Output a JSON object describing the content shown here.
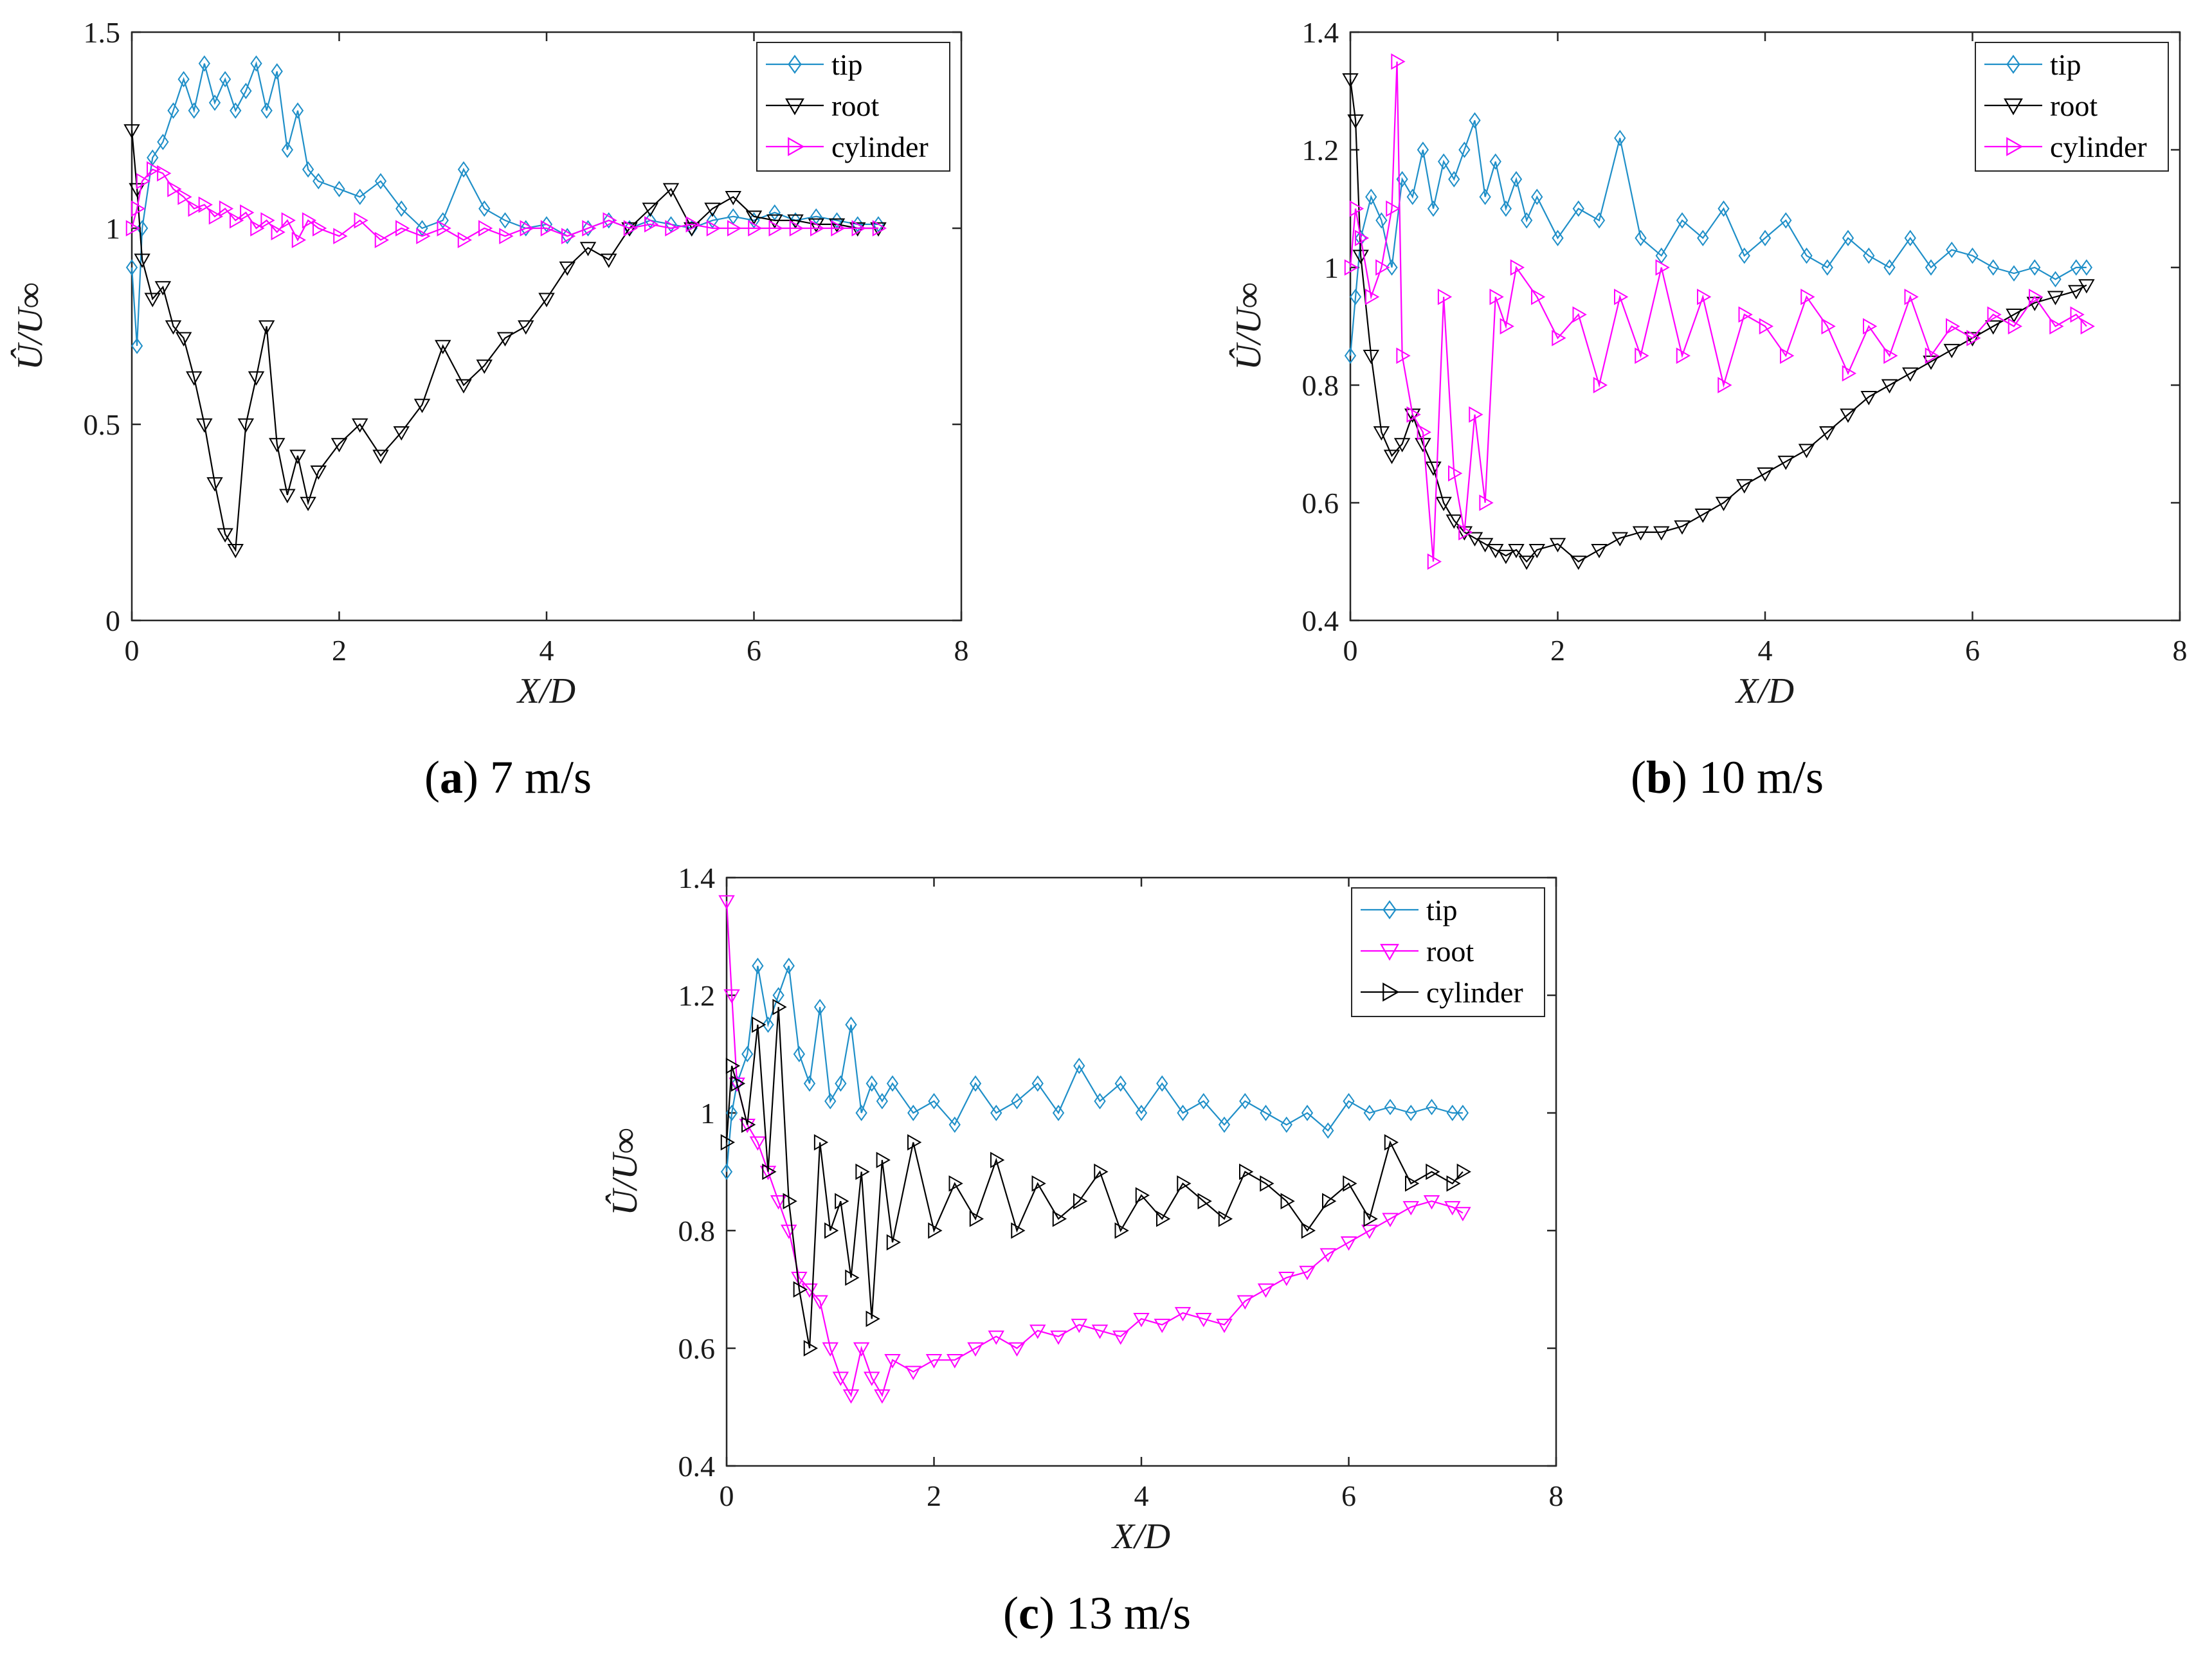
{
  "figure": {
    "captions": [
      {
        "letter": "a",
        "text": "7 m/s"
      },
      {
        "letter": "b",
        "text": "10 m/s"
      },
      {
        "letter": "c",
        "text": "13 m/s"
      }
    ]
  },
  "chart_data": [
    {
      "id": "a",
      "type": "line",
      "title": "",
      "xlabel": "X/D",
      "ylabel": "Û/U∞",
      "xlim": [
        0,
        8
      ],
      "ylim": [
        0,
        1.5
      ],
      "xticks": [
        0,
        2,
        4,
        6,
        8
      ],
      "yticks": [
        0,
        0.5,
        1,
        1.5
      ],
      "ytick_labels": [
        "0",
        "0.5",
        "1",
        "1.5"
      ],
      "legend": "top-right",
      "series": [
        {
          "name": "tip",
          "color": "#1f8fc8",
          "marker": "diamond",
          "x": [
            0,
            0.05,
            0.1,
            0.2,
            0.3,
            0.4,
            0.5,
            0.6,
            0.7,
            0.8,
            0.9,
            1.0,
            1.1,
            1.2,
            1.3,
            1.4,
            1.5,
            1.6,
            1.7,
            1.8,
            2.0,
            2.2,
            2.4,
            2.6,
            2.8,
            3.0,
            3.2,
            3.4,
            3.6,
            3.8,
            4.0,
            4.2,
            4.4,
            4.6,
            4.8,
            5.0,
            5.2,
            5.4,
            5.6,
            5.8,
            6.0,
            6.2,
            6.4,
            6.6,
            6.8,
            7.0,
            7.2
          ],
          "y": [
            0.9,
            0.7,
            1.0,
            1.18,
            1.22,
            1.3,
            1.38,
            1.3,
            1.42,
            1.32,
            1.38,
            1.3,
            1.35,
            1.42,
            1.3,
            1.4,
            1.2,
            1.3,
            1.15,
            1.12,
            1.1,
            1.08,
            1.12,
            1.05,
            1.0,
            1.02,
            1.15,
            1.05,
            1.02,
            1.0,
            1.01,
            0.98,
            1.0,
            1.02,
            1.0,
            1.02,
            1.01,
            1.0,
            1.02,
            1.03,
            1.02,
            1.04,
            1.02,
            1.03,
            1.02,
            1.01,
            1.01
          ]
        },
        {
          "name": "root",
          "color": "#000000",
          "marker": "triangle-down",
          "x": [
            0,
            0.05,
            0.1,
            0.2,
            0.3,
            0.4,
            0.5,
            0.6,
            0.7,
            0.8,
            0.9,
            1.0,
            1.1,
            1.2,
            1.3,
            1.4,
            1.5,
            1.6,
            1.7,
            1.8,
            2.0,
            2.2,
            2.4,
            2.6,
            2.8,
            3.0,
            3.2,
            3.4,
            3.6,
            3.8,
            4.0,
            4.2,
            4.4,
            4.6,
            4.8,
            5.0,
            5.2,
            5.4,
            5.6,
            5.8,
            6.0,
            6.2,
            6.4,
            6.6,
            6.8,
            7.0,
            7.2
          ],
          "y": [
            1.25,
            1.1,
            0.92,
            0.82,
            0.85,
            0.75,
            0.72,
            0.62,
            0.5,
            0.35,
            0.22,
            0.18,
            0.5,
            0.62,
            0.75,
            0.45,
            0.32,
            0.42,
            0.3,
            0.38,
            0.45,
            0.5,
            0.42,
            0.48,
            0.55,
            0.7,
            0.6,
            0.65,
            0.72,
            0.75,
            0.82,
            0.9,
            0.95,
            0.92,
            1.0,
            1.05,
            1.1,
            1.0,
            1.05,
            1.08,
            1.03,
            1.02,
            1.02,
            1.01,
            1.01,
            1.0,
            1.0
          ]
        },
        {
          "name": "cylinder",
          "color": "#ff00ff",
          "marker": "triangle-right",
          "x": [
            0,
            0.05,
            0.1,
            0.2,
            0.3,
            0.4,
            0.5,
            0.6,
            0.7,
            0.8,
            0.9,
            1.0,
            1.1,
            1.2,
            1.3,
            1.4,
            1.5,
            1.6,
            1.7,
            1.8,
            2.0,
            2.2,
            2.4,
            2.6,
            2.8,
            3.0,
            3.2,
            3.4,
            3.6,
            3.8,
            4.0,
            4.2,
            4.4,
            4.6,
            4.8,
            5.0,
            5.2,
            5.4,
            5.6,
            5.8,
            6.0,
            6.2,
            6.4,
            6.6,
            6.8,
            7.0,
            7.2
          ],
          "y": [
            1.0,
            1.05,
            1.12,
            1.15,
            1.14,
            1.1,
            1.08,
            1.05,
            1.06,
            1.03,
            1.05,
            1.02,
            1.04,
            1.0,
            1.02,
            0.99,
            1.02,
            0.97,
            1.02,
            1.0,
            0.98,
            1.02,
            0.97,
            1.0,
            0.98,
            1.0,
            0.97,
            1.0,
            0.98,
            1.0,
            1.0,
            0.98,
            1.0,
            1.02,
            1.0,
            1.01,
            1.0,
            1.01,
            1.0,
            1.0,
            1.0,
            1.0,
            1.0,
            1.0,
            1.0,
            1.0,
            1.0
          ]
        }
      ]
    },
    {
      "id": "b",
      "type": "line",
      "title": "",
      "xlabel": "X/D",
      "ylabel": "Û/U∞",
      "xlim": [
        0,
        8
      ],
      "ylim": [
        0.4,
        1.4
      ],
      "xticks": [
        0,
        2,
        4,
        6,
        8
      ],
      "yticks": [
        0.4,
        0.6,
        0.8,
        1,
        1.2,
        1.4
      ],
      "ytick_labels": [
        "0.4",
        "0.6",
        "0.8",
        "1",
        "1.2",
        "1.4"
      ],
      "legend": "top-right",
      "series": [
        {
          "name": "tip",
          "color": "#1f8fc8",
          "marker": "diamond",
          "x": [
            0,
            0.05,
            0.1,
            0.2,
            0.3,
            0.4,
            0.5,
            0.6,
            0.7,
            0.8,
            0.9,
            1.0,
            1.1,
            1.2,
            1.3,
            1.4,
            1.5,
            1.6,
            1.7,
            1.8,
            2.0,
            2.2,
            2.4,
            2.6,
            2.8,
            3.0,
            3.2,
            3.4,
            3.6,
            3.8,
            4.0,
            4.2,
            4.4,
            4.6,
            4.8,
            5.0,
            5.2,
            5.4,
            5.6,
            5.8,
            6.0,
            6.2,
            6.4,
            6.6,
            6.8,
            7.0,
            7.1
          ],
          "y": [
            0.85,
            0.95,
            1.05,
            1.12,
            1.08,
            1.0,
            1.15,
            1.12,
            1.2,
            1.1,
            1.18,
            1.15,
            1.2,
            1.25,
            1.12,
            1.18,
            1.1,
            1.15,
            1.08,
            1.12,
            1.05,
            1.1,
            1.08,
            1.22,
            1.05,
            1.02,
            1.08,
            1.05,
            1.1,
            1.02,
            1.05,
            1.08,
            1.02,
            1.0,
            1.05,
            1.02,
            1.0,
            1.05,
            1.0,
            1.03,
            1.02,
            1.0,
            0.99,
            1.0,
            0.98,
            1.0,
            1.0
          ]
        },
        {
          "name": "root",
          "color": "#000000",
          "marker": "triangle-down",
          "x": [
            0,
            0.05,
            0.1,
            0.2,
            0.3,
            0.4,
            0.5,
            0.6,
            0.7,
            0.8,
            0.9,
            1.0,
            1.1,
            1.2,
            1.3,
            1.4,
            1.5,
            1.6,
            1.7,
            1.8,
            2.0,
            2.2,
            2.4,
            2.6,
            2.8,
            3.0,
            3.2,
            3.4,
            3.6,
            3.8,
            4.0,
            4.2,
            4.4,
            4.6,
            4.8,
            5.0,
            5.2,
            5.4,
            5.6,
            5.8,
            6.0,
            6.2,
            6.4,
            6.6,
            6.8,
            7.0,
            7.1
          ],
          "y": [
            1.32,
            1.25,
            1.02,
            0.85,
            0.72,
            0.68,
            0.7,
            0.75,
            0.7,
            0.66,
            0.6,
            0.57,
            0.55,
            0.54,
            0.53,
            0.52,
            0.51,
            0.52,
            0.5,
            0.52,
            0.53,
            0.5,
            0.52,
            0.54,
            0.55,
            0.55,
            0.56,
            0.58,
            0.6,
            0.63,
            0.65,
            0.67,
            0.69,
            0.72,
            0.75,
            0.78,
            0.8,
            0.82,
            0.84,
            0.86,
            0.88,
            0.9,
            0.92,
            0.94,
            0.95,
            0.96,
            0.97
          ]
        },
        {
          "name": "cylinder",
          "color": "#ff00ff",
          "marker": "triangle-right",
          "x": [
            0,
            0.05,
            0.1,
            0.2,
            0.3,
            0.4,
            0.45,
            0.5,
            0.6,
            0.7,
            0.8,
            0.9,
            1.0,
            1.1,
            1.2,
            1.3,
            1.4,
            1.5,
            1.6,
            1.8,
            2.0,
            2.2,
            2.4,
            2.6,
            2.8,
            3.0,
            3.2,
            3.4,
            3.6,
            3.8,
            4.0,
            4.2,
            4.4,
            4.6,
            4.8,
            5.0,
            5.2,
            5.4,
            5.6,
            5.8,
            6.0,
            6.2,
            6.4,
            6.6,
            6.8,
            7.0,
            7.1
          ],
          "y": [
            1.0,
            1.1,
            1.05,
            0.95,
            1.0,
            1.1,
            1.35,
            0.85,
            0.75,
            0.72,
            0.5,
            0.95,
            0.65,
            0.55,
            0.75,
            0.6,
            0.95,
            0.9,
            1.0,
            0.95,
            0.88,
            0.92,
            0.8,
            0.95,
            0.85,
            1.0,
            0.85,
            0.95,
            0.8,
            0.92,
            0.9,
            0.85,
            0.95,
            0.9,
            0.82,
            0.9,
            0.85,
            0.95,
            0.85,
            0.9,
            0.88,
            0.92,
            0.9,
            0.95,
            0.9,
            0.92,
            0.9
          ]
        }
      ]
    },
    {
      "id": "c",
      "type": "line",
      "title": "",
      "xlabel": "X/D",
      "ylabel": "Û/U∞",
      "xlim": [
        0,
        8
      ],
      "ylim": [
        0.4,
        1.4
      ],
      "xticks": [
        0,
        2,
        4,
        6,
        8
      ],
      "yticks": [
        0.4,
        0.6,
        0.8,
        1,
        1.2,
        1.4
      ],
      "ytick_labels": [
        "0.4",
        "0.6",
        "0.8",
        "1",
        "1.2",
        "1.4"
      ],
      "legend": "top-right",
      "series": [
        {
          "name": "tip",
          "color": "#1f8fc8",
          "marker": "diamond",
          "x": [
            0,
            0.05,
            0.1,
            0.2,
            0.3,
            0.4,
            0.5,
            0.6,
            0.7,
            0.8,
            0.9,
            1.0,
            1.1,
            1.2,
            1.3,
            1.4,
            1.5,
            1.6,
            1.8,
            2.0,
            2.2,
            2.4,
            2.6,
            2.8,
            3.0,
            3.2,
            3.4,
            3.6,
            3.8,
            4.0,
            4.2,
            4.4,
            4.6,
            4.8,
            5.0,
            5.2,
            5.4,
            5.6,
            5.8,
            6.0,
            6.2,
            6.4,
            6.6,
            6.8,
            7.0,
            7.1
          ],
          "y": [
            0.9,
            1.0,
            1.05,
            1.1,
            1.25,
            1.15,
            1.2,
            1.25,
            1.1,
            1.05,
            1.18,
            1.02,
            1.05,
            1.15,
            1.0,
            1.05,
            1.02,
            1.05,
            1.0,
            1.02,
            0.98,
            1.05,
            1.0,
            1.02,
            1.05,
            1.0,
            1.08,
            1.02,
            1.05,
            1.0,
            1.05,
            1.0,
            1.02,
            0.98,
            1.02,
            1.0,
            0.98,
            1.0,
            0.97,
            1.02,
            1.0,
            1.01,
            1.0,
            1.01,
            1.0,
            1.0
          ]
        },
        {
          "name": "root",
          "color": "#ff00ff",
          "marker": "triangle-down",
          "x": [
            0,
            0.05,
            0.1,
            0.2,
            0.3,
            0.4,
            0.5,
            0.6,
            0.7,
            0.8,
            0.9,
            1.0,
            1.1,
            1.2,
            1.3,
            1.4,
            1.5,
            1.6,
            1.8,
            2.0,
            2.2,
            2.4,
            2.6,
            2.8,
            3.0,
            3.2,
            3.4,
            3.6,
            3.8,
            4.0,
            4.2,
            4.4,
            4.6,
            4.8,
            5.0,
            5.2,
            5.4,
            5.6,
            5.8,
            6.0,
            6.2,
            6.4,
            6.6,
            6.8,
            7.0,
            7.1
          ],
          "y": [
            1.36,
            1.2,
            1.05,
            0.98,
            0.95,
            0.9,
            0.85,
            0.8,
            0.72,
            0.7,
            0.68,
            0.6,
            0.55,
            0.52,
            0.6,
            0.55,
            0.52,
            0.58,
            0.56,
            0.58,
            0.58,
            0.6,
            0.62,
            0.6,
            0.63,
            0.62,
            0.64,
            0.63,
            0.62,
            0.65,
            0.64,
            0.66,
            0.65,
            0.64,
            0.68,
            0.7,
            0.72,
            0.73,
            0.76,
            0.78,
            0.8,
            0.82,
            0.84,
            0.85,
            0.84,
            0.83
          ]
        },
        {
          "name": "cylinder",
          "color": "#000000",
          "marker": "triangle-right",
          "x": [
            0,
            0.05,
            0.1,
            0.2,
            0.3,
            0.4,
            0.5,
            0.6,
            0.7,
            0.8,
            0.9,
            1.0,
            1.1,
            1.2,
            1.3,
            1.4,
            1.5,
            1.6,
            1.8,
            2.0,
            2.2,
            2.4,
            2.6,
            2.8,
            3.0,
            3.2,
            3.4,
            3.6,
            3.8,
            4.0,
            4.2,
            4.4,
            4.6,
            4.8,
            5.0,
            5.2,
            5.4,
            5.6,
            5.8,
            6.0,
            6.2,
            6.4,
            6.6,
            6.8,
            7.0,
            7.1
          ],
          "y": [
            0.95,
            1.08,
            1.05,
            0.98,
            1.15,
            0.9,
            1.18,
            0.85,
            0.7,
            0.6,
            0.95,
            0.8,
            0.85,
            0.72,
            0.9,
            0.65,
            0.92,
            0.78,
            0.95,
            0.8,
            0.88,
            0.82,
            0.92,
            0.8,
            0.88,
            0.82,
            0.85,
            0.9,
            0.8,
            0.86,
            0.82,
            0.88,
            0.85,
            0.82,
            0.9,
            0.88,
            0.85,
            0.8,
            0.85,
            0.88,
            0.82,
            0.95,
            0.88,
            0.9,
            0.88,
            0.9
          ]
        }
      ]
    }
  ]
}
